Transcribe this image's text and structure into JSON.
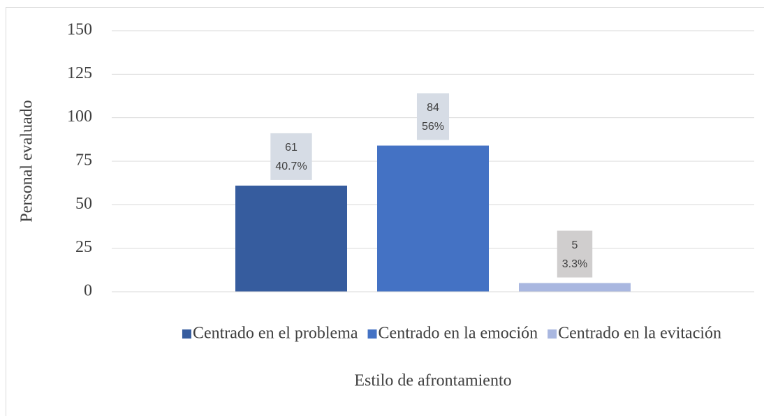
{
  "chart_data": {
    "type": "bar",
    "x_label": "Estilo de afrontamiento",
    "y_label": "Personal evaluado",
    "categories": [
      null
    ],
    "series": [
      {
        "name": "Centrado en el problema",
        "color": "#365c9e",
        "values": [
          61
        ],
        "percent_labels": [
          "40.7%"
        ],
        "label_box": "#d6dce5"
      },
      {
        "name": "Centrado en la emoción",
        "color": "#4472c4",
        "values": [
          84
        ],
        "percent_labels": [
          "56%"
        ],
        "label_box": "#d6dce5"
      },
      {
        "name": "Centrado en la evitación",
        "color": "#a9b7e0",
        "values": [
          5
        ],
        "percent_labels": [
          "3.3%"
        ],
        "label_box": "#d0cece"
      }
    ],
    "ylim": [
      0,
      150
    ],
    "yticks": [
      0,
      25,
      50,
      75,
      100,
      125,
      150
    ],
    "grid": true,
    "legend": "bottom"
  }
}
